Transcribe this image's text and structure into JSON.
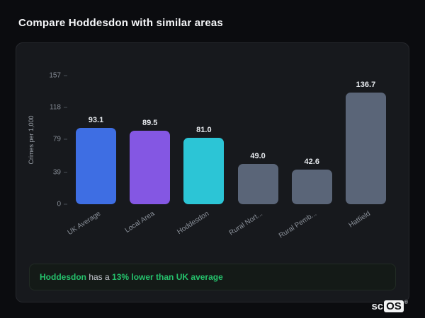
{
  "page": {
    "title": "Compare Hoddesdon with similar areas"
  },
  "chart_data": {
    "type": "bar",
    "categories": [
      "UK Average",
      "Local Area",
      "Hoddesdon",
      "Rural Nort...",
      "Rural Pemb...",
      "Hatfield"
    ],
    "values": [
      93.1,
      89.5,
      81.0,
      49.0,
      42.6,
      136.7
    ],
    "value_labels": [
      "93.1",
      "89.5",
      "81.0",
      "49.0",
      "42.6",
      "136.7"
    ],
    "bar_colors": [
      "#3e6ee3",
      "#8457e3",
      "#2cc5d6",
      "#5a6578",
      "#5a6578",
      "#5a6578"
    ],
    "title": "",
    "xlabel": "",
    "ylabel": "Crimes per 1,000",
    "yticks": [
      0,
      39,
      79,
      118,
      157
    ],
    "ylim": [
      0,
      157
    ],
    "grid": false,
    "legend": "none"
  },
  "footer": {
    "area": "Hoddesdon",
    "middle": " has a ",
    "highlight": "13% lower than UK average"
  },
  "logo": {
    "prefix": "sc",
    "boxed": "OS",
    "registered": "®"
  },
  "colors": {
    "background": "#0b0c0f",
    "card": "#17191d",
    "accent_green": "#25c26c",
    "bar_blue": "#3e6ee3",
    "bar_purple": "#8457e3",
    "bar_teal": "#2cc5d6",
    "bar_slate": "#5a6578"
  }
}
